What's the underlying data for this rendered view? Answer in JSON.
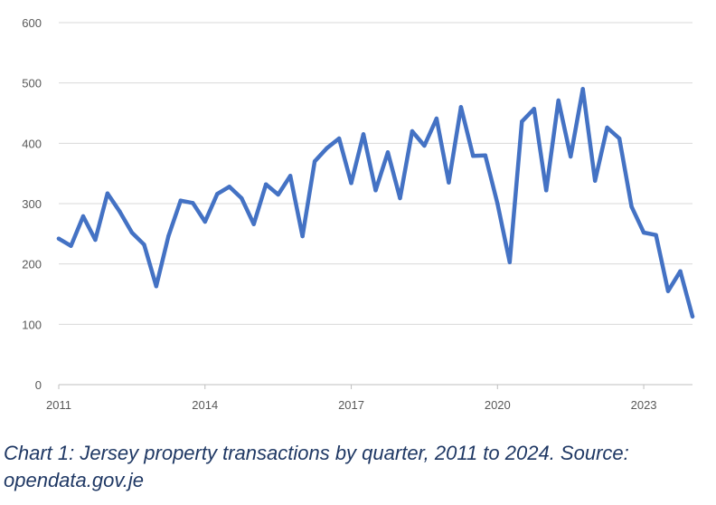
{
  "caption": "Chart  1: Jersey property transactions by quarter, 2011 to 2024.  Source: opendata.gov.je",
  "chart_data": {
    "type": "line",
    "title": "",
    "xlabel": "",
    "ylabel": "",
    "ylim": [
      0,
      600
    ],
    "yticks": [
      0,
      100,
      200,
      300,
      400,
      500,
      600
    ],
    "xticks": [
      "2011",
      "2014",
      "2017",
      "2020",
      "2023"
    ],
    "grid": true,
    "color": "#4472c4",
    "categories": [
      "2011 Q1",
      "2011 Q2",
      "2011 Q3",
      "2011 Q4",
      "2012 Q1",
      "2012 Q2",
      "2012 Q3",
      "2012 Q4",
      "2013 Q1",
      "2013 Q2",
      "2013 Q3",
      "2013 Q4",
      "2014 Q1",
      "2014 Q2",
      "2014 Q3",
      "2014 Q4",
      "2015 Q1",
      "2015 Q2",
      "2015 Q3",
      "2015 Q4",
      "2016 Q1",
      "2016 Q2",
      "2016 Q3",
      "2016 Q4",
      "2017 Q1",
      "2017 Q2",
      "2017 Q3",
      "2017 Q4",
      "2018 Q1",
      "2018 Q2",
      "2018 Q3",
      "2018 Q4",
      "2019 Q1",
      "2019 Q2",
      "2019 Q3",
      "2019 Q4",
      "2020 Q1",
      "2020 Q2",
      "2020 Q3",
      "2020 Q4",
      "2021 Q1",
      "2021 Q2",
      "2021 Q3",
      "2021 Q4",
      "2022 Q1",
      "2022 Q2",
      "2022 Q3",
      "2022 Q4",
      "2023 Q1",
      "2023 Q2",
      "2023 Q3",
      "2023 Q4",
      "2024 Q1"
    ],
    "values": [
      242,
      230,
      279,
      240,
      317,
      287,
      252,
      232,
      163,
      246,
      305,
      301,
      270,
      316,
      328,
      309,
      266,
      332,
      315,
      346,
      246,
      370,
      392,
      408,
      334,
      415,
      322,
      385,
      309,
      420,
      396,
      441,
      335,
      460,
      379,
      380,
      300,
      203,
      436,
      457,
      322,
      471,
      378,
      490,
      338,
      426,
      408,
      295,
      252,
      248,
      155,
      188,
      113
    ]
  }
}
